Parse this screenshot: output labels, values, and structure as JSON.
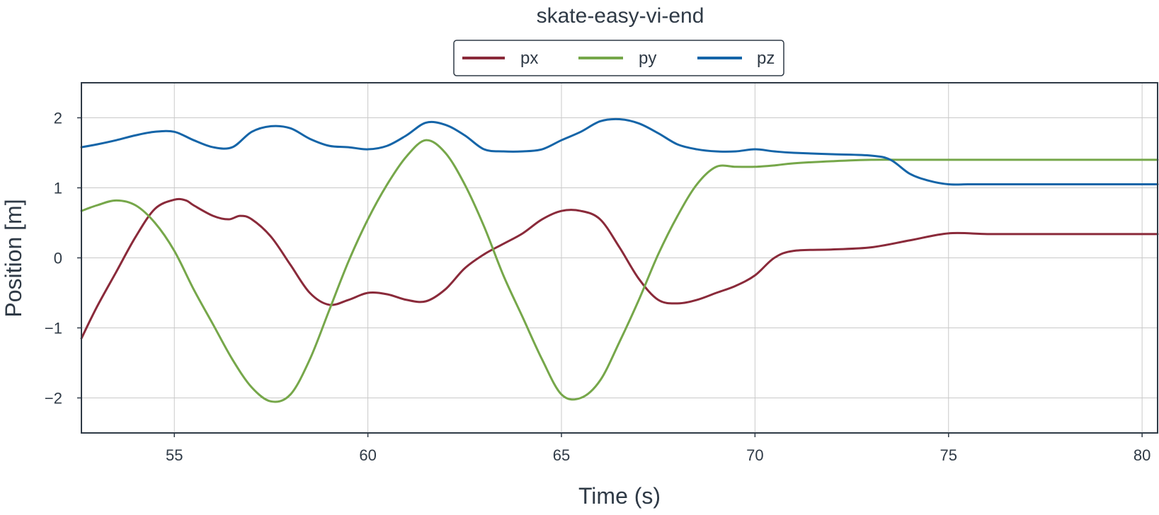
{
  "chart_data": {
    "type": "line",
    "title": "skate-easy-vi-end",
    "xlabel": "Time (s)",
    "ylabel": "Position [m]",
    "xlim": [
      52.6,
      80.4
    ],
    "ylim": [
      -2.5,
      2.5
    ],
    "xticks": [
      55,
      60,
      65,
      70,
      75,
      80
    ],
    "yticks": [
      2,
      1,
      0,
      -1,
      -2
    ],
    "ytick_labels": [
      "2",
      "1",
      "0",
      "−1",
      "−2"
    ],
    "grid": true,
    "legend_position": "top-center, above plot",
    "series": [
      {
        "name": "px",
        "color": "#8a2a3a",
        "x": [
          52.6,
          53.0,
          53.5,
          54.0,
          54.5,
          55.0,
          55.3,
          55.5,
          56.0,
          56.4,
          56.7,
          57.0,
          57.5,
          58.0,
          58.5,
          59.0,
          59.5,
          60.0,
          60.5,
          61.0,
          61.5,
          62.0,
          62.5,
          63.0,
          63.5,
          64.0,
          64.5,
          65.0,
          65.5,
          66.0,
          66.5,
          67.0,
          67.5,
          68.0,
          68.5,
          69.0,
          69.5,
          70.0,
          70.5,
          71.0,
          72.0,
          73.0,
          74.0,
          75.0,
          76.0,
          77.0,
          78.0,
          79.0,
          80.4
        ],
        "values": [
          -1.15,
          -0.7,
          -0.2,
          0.3,
          0.7,
          0.83,
          0.82,
          0.75,
          0.6,
          0.55,
          0.6,
          0.55,
          0.3,
          -0.1,
          -0.5,
          -0.67,
          -0.6,
          -0.5,
          -0.52,
          -0.6,
          -0.62,
          -0.45,
          -0.15,
          0.05,
          0.2,
          0.35,
          0.55,
          0.67,
          0.67,
          0.55,
          0.15,
          -0.3,
          -0.6,
          -0.65,
          -0.6,
          -0.5,
          -0.4,
          -0.25,
          0.0,
          0.1,
          0.12,
          0.15,
          0.25,
          0.35,
          0.34,
          0.34,
          0.34,
          0.34,
          0.34
        ]
      },
      {
        "name": "py",
        "color": "#76a74a",
        "x": [
          52.6,
          53.0,
          53.5,
          54.0,
          54.5,
          55.0,
          55.5,
          56.0,
          56.5,
          57.0,
          57.5,
          58.0,
          58.5,
          59.0,
          59.5,
          60.0,
          60.5,
          61.0,
          61.5,
          62.0,
          62.5,
          63.0,
          63.5,
          64.0,
          64.5,
          65.0,
          65.5,
          66.0,
          66.5,
          67.0,
          67.5,
          68.0,
          68.5,
          69.0,
          69.5,
          70.0,
          70.5,
          71.0,
          72.0,
          73.0,
          74.0,
          74.8,
          75.5,
          76.0,
          77.0,
          78.0,
          79.0,
          80.4
        ],
        "values": [
          0.67,
          0.75,
          0.82,
          0.75,
          0.5,
          0.1,
          -0.45,
          -0.95,
          -1.45,
          -1.85,
          -2.05,
          -1.95,
          -1.45,
          -0.75,
          -0.05,
          0.55,
          1.05,
          1.45,
          1.68,
          1.5,
          1.05,
          0.45,
          -0.25,
          -0.85,
          -1.45,
          -1.95,
          -2.0,
          -1.75,
          -1.2,
          -0.6,
          0.05,
          0.6,
          1.05,
          1.3,
          1.3,
          1.3,
          1.32,
          1.35,
          1.38,
          1.4,
          1.4,
          1.4,
          1.4,
          1.4,
          1.4,
          1.4,
          1.4,
          1.4
        ]
      },
      {
        "name": "pz",
        "color": "#1565a8",
        "x": [
          52.6,
          53.0,
          53.5,
          54.0,
          54.5,
          55.0,
          55.5,
          56.0,
          56.5,
          57.0,
          57.5,
          58.0,
          58.5,
          59.0,
          59.5,
          60.0,
          60.5,
          61.0,
          61.5,
          62.0,
          62.5,
          63.0,
          63.5,
          64.0,
          64.5,
          65.0,
          65.5,
          66.0,
          66.5,
          67.0,
          67.5,
          68.0,
          68.5,
          69.0,
          69.5,
          70.0,
          70.5,
          71.0,
          72.0,
          73.0,
          73.5,
          74.0,
          74.5,
          75.0,
          75.5,
          76.0,
          77.0,
          78.0,
          79.0,
          80.4
        ],
        "values": [
          1.58,
          1.62,
          1.68,
          1.75,
          1.8,
          1.8,
          1.68,
          1.58,
          1.58,
          1.8,
          1.88,
          1.85,
          1.7,
          1.6,
          1.58,
          1.55,
          1.6,
          1.75,
          1.93,
          1.9,
          1.75,
          1.55,
          1.52,
          1.52,
          1.55,
          1.68,
          1.8,
          1.95,
          1.98,
          1.92,
          1.78,
          1.62,
          1.55,
          1.52,
          1.52,
          1.55,
          1.52,
          1.5,
          1.48,
          1.46,
          1.4,
          1.2,
          1.1,
          1.05,
          1.05,
          1.05,
          1.05,
          1.05,
          1.05,
          1.05
        ]
      }
    ]
  }
}
